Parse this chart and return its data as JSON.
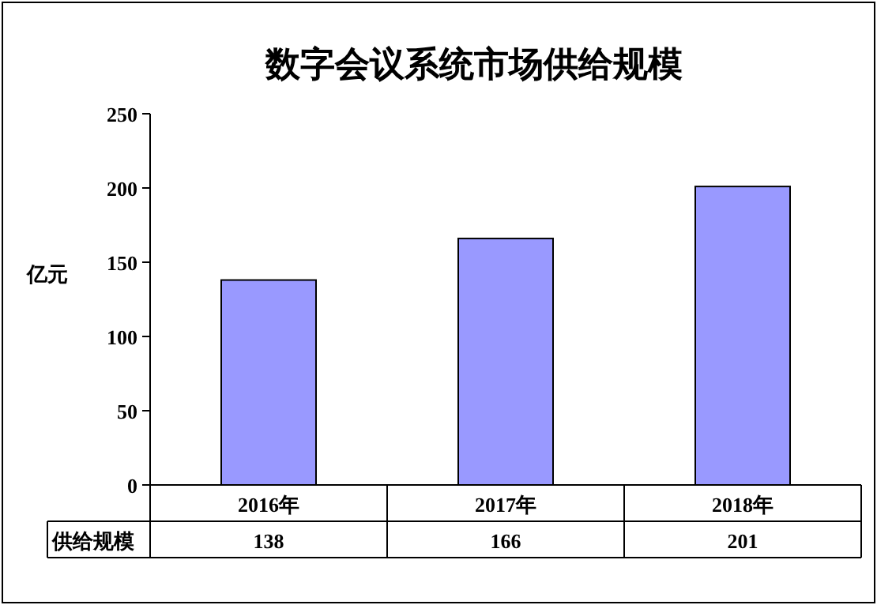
{
  "chart_data": {
    "type": "bar",
    "title": "数字会议系统市场供给规模",
    "ylabel": "亿元",
    "categories": [
      "2016年",
      "2017年",
      "2018年"
    ],
    "series": [
      {
        "name": "供给规模",
        "color": "#9999ff",
        "values": [
          138,
          166,
          201
        ]
      }
    ],
    "ylim": [
      0,
      250
    ],
    "yticks": [
      0,
      50,
      100,
      150,
      200,
      250
    ],
    "data_labels": true,
    "grid": false,
    "legend": "bottom"
  }
}
